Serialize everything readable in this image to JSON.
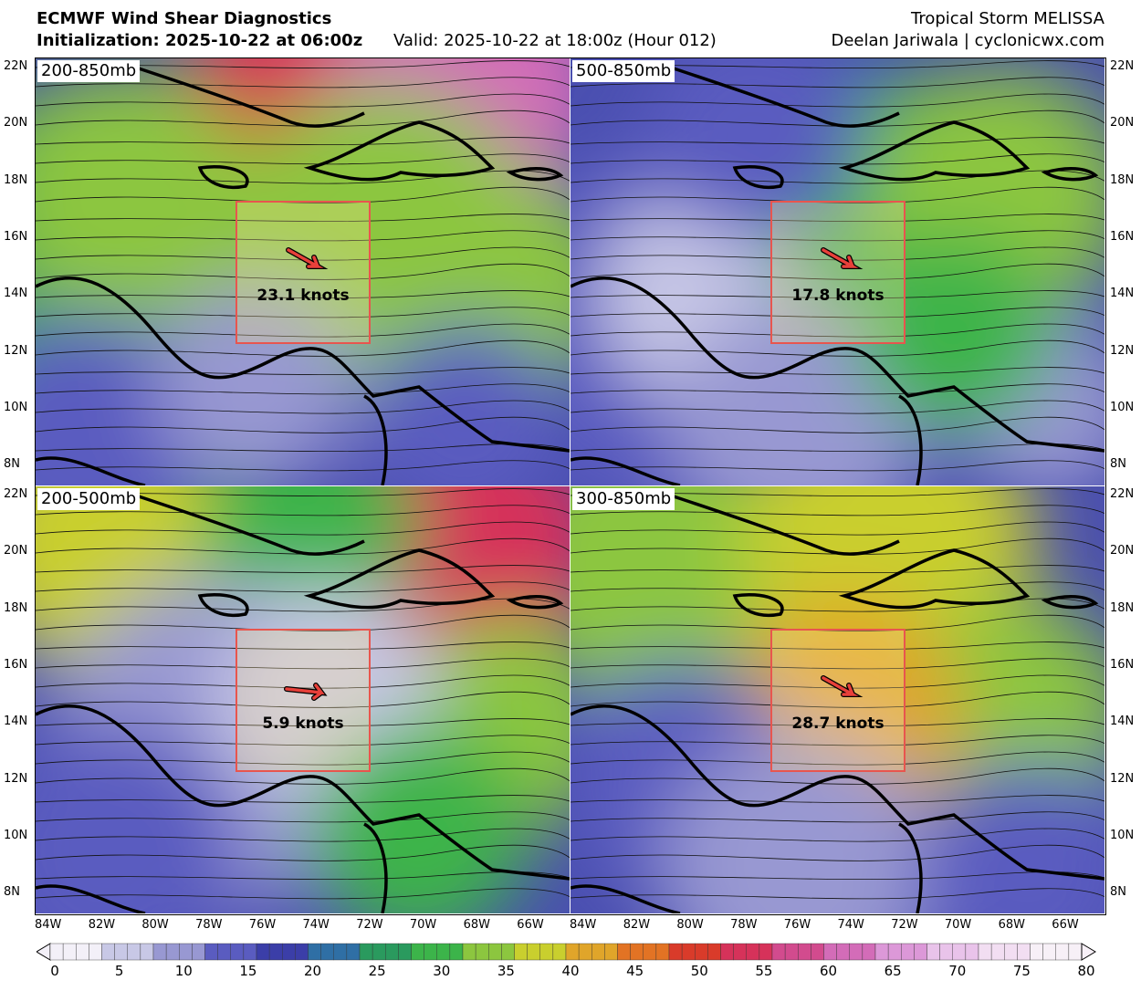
{
  "header": {
    "title": "ECMWF Wind Shear Diagnostics",
    "init": "Initialization: 2025-10-22 at 06:00z",
    "valid": "Valid: 2025-10-22 at 18:00z (Hour 012)",
    "storm": "Tropical Storm MELISSA",
    "credit": "Deelan Jariwala | cyclonicwx.com"
  },
  "panels": [
    {
      "label": "200-850mb",
      "shear": "23.1 knots",
      "arrow_dir": "se"
    },
    {
      "label": "500-850mb",
      "shear": "17.8 knots",
      "arrow_dir": "se"
    },
    {
      "label": "200-500mb",
      "shear": "5.9 knots",
      "arrow_dir": "e"
    },
    {
      "label": "300-850mb",
      "shear": "28.7 knots",
      "arrow_dir": "se"
    }
  ],
  "lat_labels": [
    "22N",
    "20N",
    "18N",
    "16N",
    "14N",
    "12N",
    "10N",
    "8N"
  ],
  "lon_labels": [
    "84W",
    "82W",
    "80W",
    "78W",
    "76W",
    "74W",
    "72W",
    "70W",
    "68W",
    "66W"
  ],
  "colorbar": {
    "ticks": [
      "0",
      "5",
      "10",
      "15",
      "20",
      "25",
      "30",
      "35",
      "40",
      "45",
      "50",
      "55",
      "60",
      "65",
      "70",
      "75",
      "80"
    ],
    "colors": [
      "#f3f0f8",
      "#c8c8e6",
      "#9898d2",
      "#5a5cc0",
      "#3b3ea8",
      "#2f6fa5",
      "#2a9a5e",
      "#3cb44a",
      "#8cc63f",
      "#c9cf2e",
      "#e0a52a",
      "#e27324",
      "#d93b2a",
      "#d6325a",
      "#d24b8e",
      "#d36cb8",
      "#dc98d8",
      "#e9c3ea",
      "#f2def2",
      "#f7f0f7"
    ]
  }
}
